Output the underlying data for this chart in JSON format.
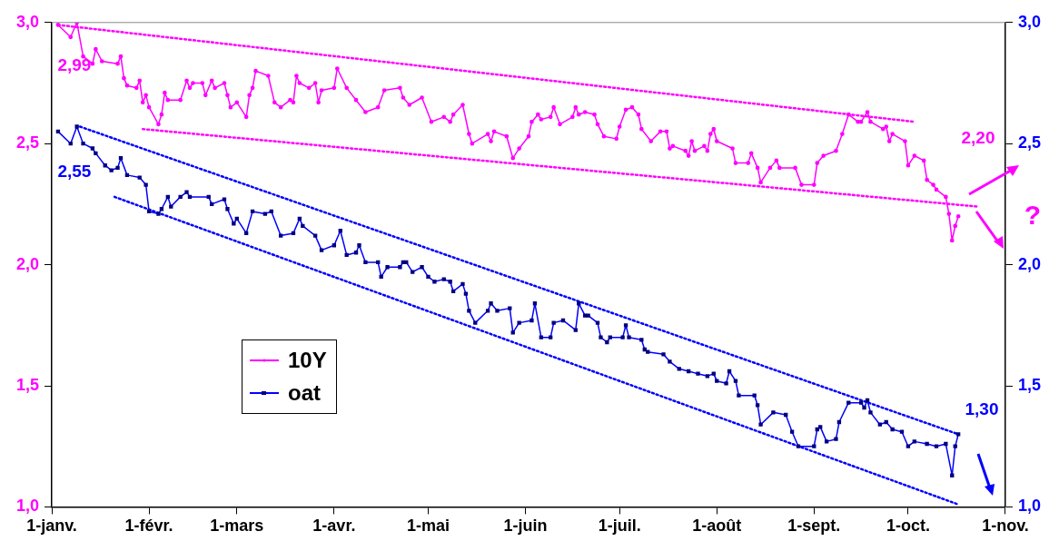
{
  "chart_data": {
    "type": "line",
    "xlim": [
      "--01-01",
      "--11-01"
    ],
    "xticks": [
      {
        "value": "--01-01",
        "label": "1-janv."
      },
      {
        "value": "--02-01",
        "label": "1-févr."
      },
      {
        "value": "--03-01",
        "label": "1-mars"
      },
      {
        "value": "--04-01",
        "label": "1-avr."
      },
      {
        "value": "--05-01",
        "label": "1-mai"
      },
      {
        "value": "--06-01",
        "label": "1-juin"
      },
      {
        "value": "--07-01",
        "label": "1-juil."
      },
      {
        "value": "--08-01",
        "label": "1-août"
      },
      {
        "value": "--09-01",
        "label": "1-sept."
      },
      {
        "value": "--10-01",
        "label": "1-oct."
      },
      {
        "value": "--11-01",
        "label": "1-nov."
      }
    ],
    "ylim": [
      1,
      3
    ],
    "yticks": [
      {
        "value": 1,
        "label": "1,0"
      },
      {
        "value": 1.5,
        "label": "1,5"
      },
      {
        "value": 2,
        "label": "2,0"
      },
      {
        "value": 2.5,
        "label": "2,5"
      },
      {
        "value": 3,
        "label": "3,0"
      }
    ],
    "y2lim": [
      1,
      3
    ],
    "y2ticks": [
      {
        "value": 1,
        "label": "1,0"
      },
      {
        "value": 1.5,
        "label": "1,5"
      },
      {
        "value": 2,
        "label": "2,0"
      },
      {
        "value": 2.5,
        "label": "2,5"
      },
      {
        "value": 3,
        "label": "3,0"
      }
    ],
    "legend": "bottom left",
    "series": [
      {
        "name": "10Y",
        "color": "#ff00ff",
        "marker": "circle",
        "line_style": "solid",
        "x": [
          "--01-03",
          "--01-07",
          "--01-09",
          "--01-11",
          "--01-14",
          "--01-15",
          "--01-17",
          "--01-22",
          "--01-23",
          "--01-24",
          "--01-25",
          "--01-28",
          "--01-29",
          "--01-30",
          "--01-31",
          "--02-01",
          "--02-04",
          "--02-05",
          "--02-06",
          "--02-07",
          "--02-11",
          "--02-13",
          "--02-14",
          "--02-15",
          "--02-18",
          "--02-19",
          "--02-21",
          "--02-22",
          "--02-25",
          "--02-26",
          "--02-27",
          "--03-01",
          "--03-04",
          "--03-05",
          "--03-06",
          "--03-07",
          "--03-11",
          "--03-13",
          "--03-15",
          "--03-18",
          "--03-19",
          "--03-20",
          "--03-21",
          "--03-24",
          "--03-26",
          "--03-27",
          "--03-28",
          "--04-01",
          "--04-02",
          "--04-05",
          "--04-08",
          "--04-11",
          "--04-15",
          "--04-17",
          "--04-22",
          "--04-23",
          "--04-25",
          "--04-29",
          "--05-02",
          "--05-06",
          "--05-08",
          "--05-09",
          "--05-12",
          "--05-14",
          "--05-15",
          "--05-20",
          "--05-21",
          "--05-22",
          "--05-26",
          "--05-28",
          "--05-30",
          "--06-02",
          "--06-03",
          "--06-05",
          "--06-06",
          "--06-09",
          "--06-10",
          "--06-12",
          "--06-16",
          "--06-17",
          "--06-18",
          "--06-20",
          "--06-23",
          "--06-24",
          "--06-26",
          "--06-30",
          "--07-01",
          "--07-03",
          "--07-05",
          "--07-07",
          "--07-08",
          "--07-11",
          "--07-14",
          "--07-16",
          "--07-17",
          "--07-18",
          "--07-22",
          "--07-23",
          "--07-24",
          "--07-25",
          "--07-28",
          "--07-29",
          "--07-30",
          "--07-31",
          "--08-01",
          "--08-06",
          "--08-07",
          "--08-11",
          "--08-12",
          "--08-14",
          "--08-15",
          "--08-18",
          "--08-20",
          "--08-21",
          "--08-26",
          "--08-28",
          "--09-01",
          "--09-02",
          "--09-04",
          "--09-08",
          "--09-10",
          "--09-12",
          "--09-15",
          "--09-16",
          "--09-18",
          "--09-19",
          "--09-23",
          "--09-24",
          "--09-25",
          "--09-26",
          "--09-30",
          "--10-01",
          "--10-03",
          "--10-06",
          "--10-07",
          "--10-09",
          "--10-10",
          "--10-13",
          "--10-14",
          "--10-15",
          "--10-16",
          "--10-17"
        ],
        "values": [
          2.99,
          2.94,
          3.0,
          2.86,
          2.83,
          2.89,
          2.84,
          2.83,
          2.86,
          2.77,
          2.74,
          2.73,
          2.76,
          2.67,
          2.7,
          2.65,
          2.58,
          2.62,
          2.71,
          2.68,
          2.68,
          2.76,
          2.73,
          2.75,
          2.75,
          2.7,
          2.76,
          2.73,
          2.75,
          2.7,
          2.65,
          2.67,
          2.61,
          2.7,
          2.73,
          2.8,
          2.78,
          2.67,
          2.65,
          2.68,
          2.67,
          2.78,
          2.75,
          2.73,
          2.75,
          2.67,
          2.72,
          2.73,
          2.81,
          2.73,
          2.68,
          2.63,
          2.65,
          2.72,
          2.73,
          2.69,
          2.66,
          2.69,
          2.59,
          2.61,
          2.59,
          2.62,
          2.66,
          2.54,
          2.5,
          2.54,
          2.51,
          2.55,
          2.53,
          2.44,
          2.48,
          2.53,
          2.59,
          2.62,
          2.6,
          2.61,
          2.65,
          2.58,
          2.61,
          2.65,
          2.62,
          2.63,
          2.62,
          2.58,
          2.53,
          2.52,
          2.57,
          2.64,
          2.65,
          2.62,
          2.56,
          2.51,
          2.55,
          2.55,
          2.48,
          2.49,
          2.47,
          2.45,
          2.51,
          2.47,
          2.49,
          2.47,
          2.54,
          2.56,
          2.51,
          2.48,
          2.42,
          2.42,
          2.46,
          2.4,
          2.34,
          2.4,
          2.43,
          2.4,
          2.4,
          2.33,
          2.33,
          2.42,
          2.45,
          2.47,
          2.54,
          2.62,
          2.59,
          2.59,
          2.63,
          2.59,
          2.56,
          2.57,
          2.51,
          2.54,
          2.51,
          2.41,
          2.45,
          2.43,
          2.35,
          2.33,
          2.31,
          2.28,
          2.21,
          2.1,
          2.16,
          2.2
        ]
      },
      {
        "name": "oat",
        "color": "#0000ff",
        "axis": "y2",
        "marker": "square",
        "line_style": "solid",
        "x": [
          "--01-03",
          "--01-07",
          "--01-09",
          "--01-11",
          "--01-14",
          "--01-15",
          "--01-18",
          "--01-20",
          "--01-22",
          "--01-23",
          "--01-25",
          "--01-29",
          "--01-31",
          "--02-01",
          "--02-04",
          "--02-05",
          "--02-07",
          "--02-08",
          "--02-11",
          "--02-13",
          "--02-14",
          "--02-20",
          "--02-21",
          "--02-25",
          "--02-26",
          "--02-28",
          "--03-01",
          "--03-04",
          "--03-06",
          "--03-10",
          "--03-12",
          "--03-15",
          "--03-19",
          "--03-21",
          "--03-22",
          "--03-26",
          "--03-28",
          "--04-01",
          "--04-03",
          "--04-05",
          "--04-08",
          "--04-09",
          "--04-11",
          "--04-15",
          "--04-16",
          "--04-18",
          "--04-22",
          "--04-23",
          "--04-24",
          "--04-26",
          "--04-29",
          "--05-01",
          "--05-03",
          "--05-06",
          "--05-08",
          "--05-09",
          "--05-12",
          "--05-13",
          "--05-14",
          "--05-16",
          "--05-20",
          "--05-21",
          "--05-23",
          "--05-27",
          "--05-28",
          "--05-30",
          "--06-03",
          "--06-04",
          "--06-06",
          "--06-09",
          "--06-10",
          "--06-13",
          "--06-17",
          "--06-18",
          "--06-20",
          "--06-21",
          "--06-24",
          "--06-25",
          "--06-27",
          "--06-28",
          "--07-02",
          "--07-03",
          "--07-04",
          "--07-08",
          "--07-09",
          "--07-10",
          "--07-15",
          "--07-17",
          "--07-20",
          "--07-23",
          "--07-26",
          "--07-29",
          "--07-31",
          "--08-01",
          "--08-04",
          "--08-05",
          "--08-07",
          "--08-08",
          "--08-13",
          "--08-14",
          "--08-15",
          "--08-19",
          "--08-23",
          "--08-25",
          "--08-27",
          "--09-01",
          "--09-02",
          "--09-03",
          "--09-05",
          "--09-08",
          "--09-09",
          "--09-12",
          "--09-16",
          "--09-17",
          "--09-18",
          "--09-19",
          "--09-22",
          "--09-24",
          "--09-26",
          "--09-29",
          "--10-01",
          "--10-03",
          "--10-07",
          "--10-10",
          "--10-13",
          "--10-15",
          "--10-16",
          "--10-17"
        ],
        "values": [
          2.55,
          2.5,
          2.57,
          2.5,
          2.48,
          2.46,
          2.41,
          2.39,
          2.4,
          2.44,
          2.37,
          2.36,
          2.33,
          2.22,
          2.21,
          2.23,
          2.28,
          2.24,
          2.28,
          2.3,
          2.28,
          2.28,
          2.25,
          2.27,
          2.23,
          2.17,
          2.19,
          2.13,
          2.22,
          2.21,
          2.22,
          2.12,
          2.13,
          2.19,
          2.16,
          2.12,
          2.06,
          2.08,
          2.14,
          2.04,
          2.05,
          2.08,
          2.01,
          2.01,
          1.95,
          1.99,
          1.99,
          2.01,
          2.01,
          1.97,
          1.99,
          1.95,
          1.93,
          1.94,
          1.93,
          1.89,
          1.92,
          1.88,
          1.81,
          1.76,
          1.81,
          1.84,
          1.81,
          1.82,
          1.72,
          1.76,
          1.77,
          1.84,
          1.7,
          1.7,
          1.76,
          1.77,
          1.73,
          1.84,
          1.79,
          1.79,
          1.76,
          1.7,
          1.68,
          1.7,
          1.7,
          1.75,
          1.7,
          1.69,
          1.65,
          1.64,
          1.63,
          1.6,
          1.57,
          1.56,
          1.55,
          1.54,
          1.55,
          1.52,
          1.51,
          1.56,
          1.52,
          1.46,
          1.46,
          1.42,
          1.34,
          1.39,
          1.38,
          1.31,
          1.25,
          1.25,
          1.32,
          1.33,
          1.27,
          1.28,
          1.35,
          1.43,
          1.43,
          1.41,
          1.44,
          1.39,
          1.34,
          1.35,
          1.32,
          1.31,
          1.25,
          1.27,
          1.26,
          1.25,
          1.26,
          1.13,
          1.25,
          1.3
        ]
      },
      {
        "type": "line",
        "color": "#ff00ff",
        "marker": "none",
        "line_style": "dotted",
        "x": [
          "--01-03",
          "--10-03"
        ],
        "values": [
          2.99,
          2.59
        ]
      },
      {
        "type": "line",
        "color": "#ff00ff",
        "marker": "none",
        "line_style": "dotted",
        "x": [
          "--01-30",
          "--10-23"
        ],
        "values": [
          2.56,
          2.24
        ]
      },
      {
        "type": "line",
        "color": "#0000ff",
        "axis": "y2",
        "marker": "none",
        "line_style": "dotted",
        "x": [
          "--01-10",
          "--10-17"
        ],
        "values": [
          2.57,
          1.3
        ]
      },
      {
        "type": "line",
        "color": "#0000ff",
        "axis": "y2",
        "marker": "none",
        "line_style": "dotted",
        "x": [
          "--01-21",
          "--10-17"
        ],
        "values": [
          2.28,
          1.01
        ]
      }
    ],
    "annotations": [
      {
        "text": "2,99",
        "x": "--01-03",
        "y": 2.99
      },
      {
        "text": "2,55",
        "x": "--01-03",
        "y": 2.55
      },
      "2,20",
      "1,30",
      "?"
    ]
  }
}
